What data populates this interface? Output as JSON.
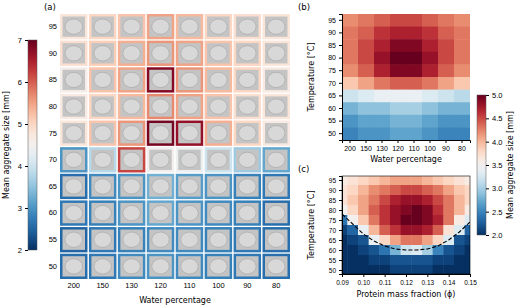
{
  "chart_data": [
    {
      "type": "heatmap",
      "title": "(a)",
      "xlabel": "Water percentage",
      "x": [
        200,
        150,
        130,
        120,
        110,
        100,
        90,
        80
      ],
      "y": [
        95,
        90,
        85,
        80,
        75,
        70,
        65,
        60,
        55,
        50
      ],
      "cells": [
        [
          4.8,
          5.0,
          5.2,
          5.5,
          5.3,
          5.0,
          4.9,
          4.8
        ],
        [
          4.9,
          5.1,
          5.4,
          5.6,
          5.5,
          5.2,
          5.0,
          4.8
        ],
        [
          4.6,
          5.2,
          5.5,
          6.8,
          5.6,
          5.3,
          5.0,
          4.7
        ],
        [
          4.7,
          5.0,
          5.3,
          5.7,
          5.5,
          5.2,
          4.9,
          4.8
        ],
        [
          4.8,
          5.2,
          5.6,
          6.9,
          6.7,
          5.4,
          5.0,
          4.7
        ],
        [
          3.0,
          3.8,
          6.2,
          4.5,
          4.4,
          4.0,
          3.6,
          3.2
        ],
        [
          2.6,
          2.9,
          3.0,
          3.3,
          3.1,
          3.0,
          2.8,
          2.7
        ],
        [
          2.7,
          2.8,
          3.0,
          3.2,
          3.0,
          2.9,
          2.8,
          2.6
        ],
        [
          2.5,
          2.7,
          2.8,
          2.9,
          2.9,
          2.8,
          2.7,
          2.6
        ],
        [
          2.6,
          2.7,
          2.9,
          3.0,
          2.9,
          2.8,
          2.7,
          2.6
        ]
      ],
      "colorbar": {
        "label": "Mean aggregate size [mm]",
        "range": [
          2,
          7
        ],
        "ticks": [
          2,
          3,
          4,
          5,
          6,
          7
        ]
      }
    },
    {
      "type": "heatmap",
      "title": "(b)",
      "xlabel": "Water percentage",
      "ylabel": "Temperature [°C]",
      "x": [
        200,
        150,
        130,
        120,
        110,
        100,
        90,
        80
      ],
      "y": [
        95,
        90,
        85,
        80,
        75,
        70,
        65,
        60,
        55,
        50
      ],
      "cells": [
        [
          4.2,
          4.3,
          4.4,
          4.5,
          4.5,
          4.4,
          4.3,
          4.2
        ],
        [
          4.3,
          4.4,
          4.6,
          4.7,
          4.7,
          4.6,
          4.4,
          4.3
        ],
        [
          4.3,
          4.5,
          4.7,
          4.9,
          4.9,
          4.7,
          4.5,
          4.3
        ],
        [
          4.3,
          4.5,
          4.8,
          5.0,
          5.0,
          4.8,
          4.5,
          4.3
        ],
        [
          4.2,
          4.4,
          4.7,
          4.9,
          4.9,
          4.7,
          4.4,
          4.2
        ],
        [
          3.9,
          4.1,
          4.3,
          4.4,
          4.4,
          4.3,
          4.1,
          3.9
        ],
        [
          3.2,
          3.3,
          3.4,
          3.4,
          3.4,
          3.3,
          3.2,
          3.1
        ],
        [
          2.8,
          2.9,
          2.9,
          3.0,
          3.0,
          2.9,
          2.8,
          2.8
        ],
        [
          2.6,
          2.7,
          2.7,
          2.8,
          2.8,
          2.7,
          2.6,
          2.6
        ],
        [
          2.5,
          2.6,
          2.6,
          2.7,
          2.7,
          2.6,
          2.5,
          2.5
        ]
      ],
      "colorbar": {
        "label": "Mean aggregate size [mm]",
        "range": [
          2,
          5
        ],
        "ticks": [
          {
            "value": 2,
            "label": "2.0"
          },
          2.5,
          {
            "value": 3,
            "label": "3.0"
          },
          3.5,
          {
            "value": 4,
            "label": "4.0"
          },
          4.5,
          {
            "value": 5,
            "label": "5.0"
          }
        ]
      }
    },
    {
      "type": "heatmap",
      "title": "(c)",
      "xlabel": "Protein mass fraction (ϕ)",
      "ylabel": "Temperature [°C]",
      "x": [
        0.09,
        0.095,
        0.1,
        0.105,
        0.11,
        0.115,
        0.12,
        0.125,
        0.13,
        0.135,
        0.14,
        0.145,
        0.15
      ],
      "y": [
        95,
        90,
        85,
        80,
        75,
        70,
        65,
        60,
        55,
        50
      ],
      "xlim": [
        0.09,
        0.15
      ],
      "xticks": [
        0.09,
        {
          "value": 0.1,
          "label": "0.10"
        },
        0.11,
        0.12,
        0.13,
        0.14,
        0.15
      ],
      "ylim": [
        48,
        97
      ],
      "yticks": [
        50,
        55,
        60,
        65,
        70,
        75,
        80,
        85,
        90,
        95
      ],
      "cells": [
        [
          3.6,
          3.7,
          3.8,
          3.9,
          4.0,
          4.1,
          4.1,
          4.1,
          4.0,
          3.9,
          3.8,
          3.7,
          3.6
        ],
        [
          3.7,
          3.8,
          4.0,
          4.2,
          4.3,
          4.4,
          4.5,
          4.5,
          4.4,
          4.3,
          4.1,
          3.9,
          3.8
        ],
        [
          3.7,
          3.9,
          4.1,
          4.3,
          4.5,
          4.7,
          4.8,
          4.8,
          4.7,
          4.5,
          4.3,
          4.0,
          3.8
        ],
        [
          3.5,
          3.8,
          4.1,
          4.4,
          4.6,
          4.8,
          4.9,
          5.0,
          4.9,
          4.6,
          4.3,
          4.0,
          3.6
        ],
        [
          2.4,
          3.5,
          3.9,
          4.3,
          4.6,
          4.8,
          5.0,
          5.0,
          4.9,
          4.7,
          4.3,
          3.6,
          3.3
        ],
        [
          2.1,
          2.3,
          3.4,
          4.0,
          4.4,
          4.6,
          4.8,
          4.8,
          4.7,
          4.4,
          3.7,
          3.3,
          2.3
        ],
        [
          2.0,
          2.1,
          2.2,
          3.4,
          3.8,
          4.1,
          4.3,
          4.3,
          4.1,
          3.8,
          3.3,
          2.2,
          2.1
        ],
        [
          2.0,
          2.0,
          2.1,
          2.2,
          2.4,
          2.8,
          3.2,
          3.3,
          3.0,
          2.5,
          2.2,
          2.1,
          2.0
        ],
        [
          2.0,
          2.0,
          2.0,
          2.1,
          2.1,
          2.2,
          2.2,
          2.2,
          2.2,
          2.1,
          2.1,
          2.0,
          2.0
        ],
        [
          2.0,
          2.0,
          2.0,
          2.0,
          2.0,
          2.1,
          2.1,
          2.1,
          2.1,
          2.0,
          2.0,
          2.0,
          2.0
        ]
      ],
      "series": [
        {
          "x": [
            0.09,
            0.095,
            0.1,
            0.105,
            0.11,
            0.115,
            0.12,
            0.125,
            0.13,
            0.135,
            0.14,
            0.145,
            0.15
          ],
          "values": [
            78,
            73,
            68,
            64.5,
            62,
            60.5,
            60,
            60,
            60.5,
            62,
            65,
            69,
            74
          ],
          "color": "#000000",
          "line_style": "dashed"
        }
      ]
    }
  ]
}
